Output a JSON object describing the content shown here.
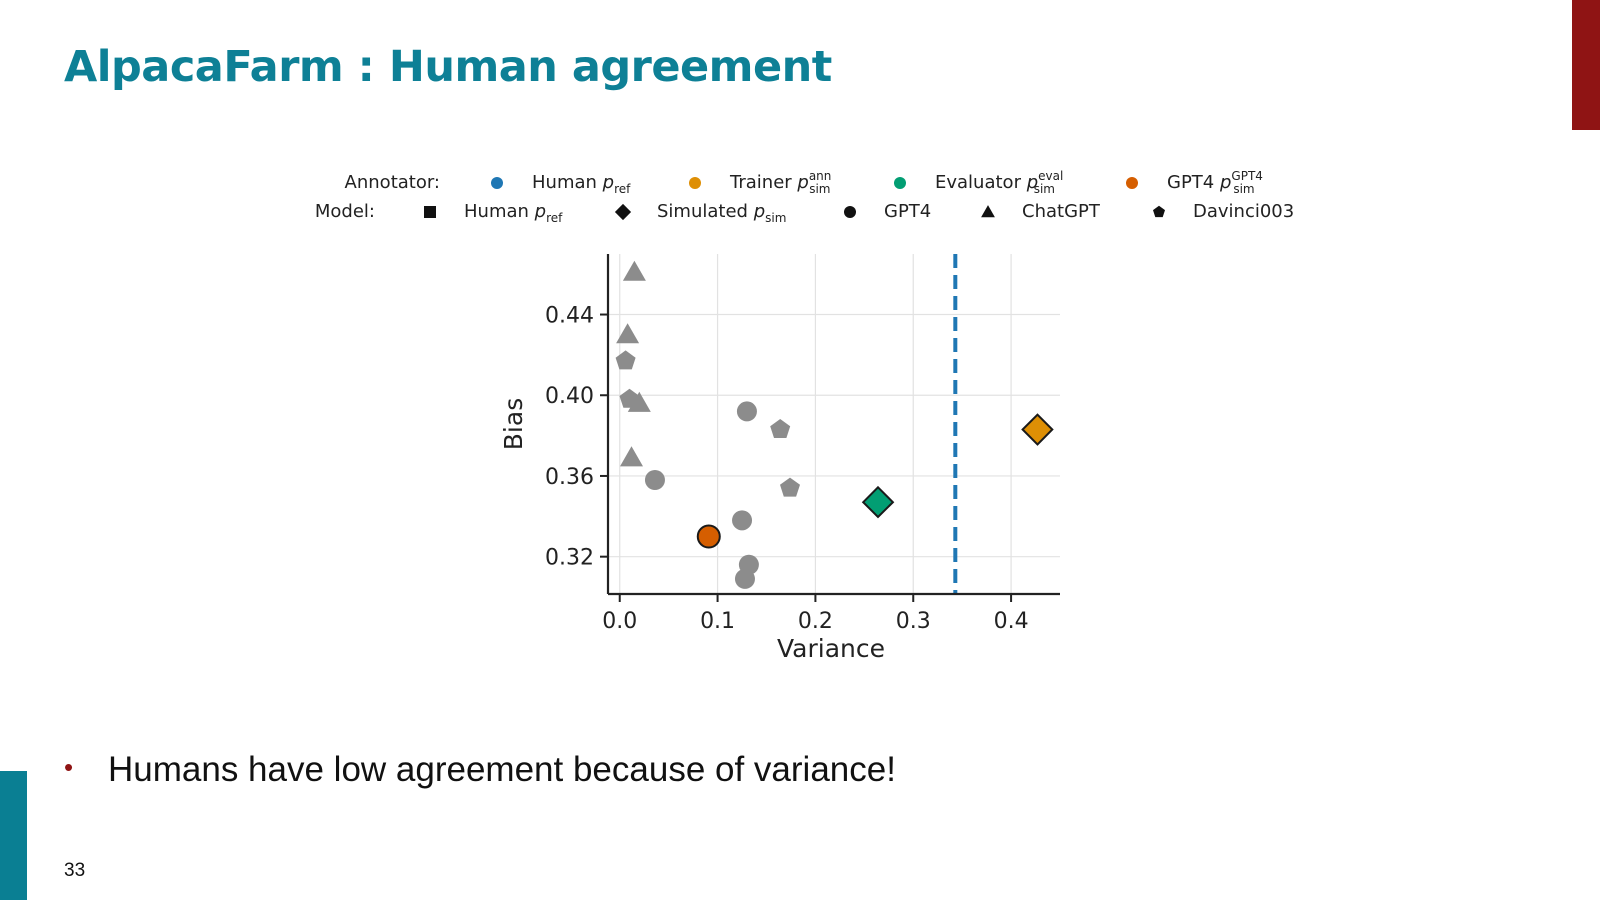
{
  "slide": {
    "title": "AlpacaFarm : Human agreement",
    "bullet": "Humans have low agreement because of variance!",
    "page_number": "33",
    "accent_colors": {
      "title": "#0e8096",
      "bar_top_right": "#8f1414",
      "bar_bottom_left": "#0a7f93",
      "bullet": "#8f1414"
    }
  },
  "chart_data": {
    "type": "scatter",
    "xlabel": "Variance",
    "ylabel": "Bias",
    "xlim": [
      -0.012,
      0.45
    ],
    "ylim": [
      0.3015,
      0.47
    ],
    "xticks": [
      0.0,
      0.1,
      0.2,
      0.3,
      0.4
    ],
    "xtick_labels": [
      "0.0",
      "0.1",
      "0.2",
      "0.3",
      "0.4"
    ],
    "yticks": [
      0.32,
      0.36,
      0.4,
      0.44
    ],
    "ytick_labels": [
      "0.32",
      "0.36",
      "0.40",
      "0.44"
    ],
    "grid": true,
    "legend_placement": "top",
    "legend": {
      "annotator_heading": "Annotator:",
      "model_heading": "Model:",
      "annotators": [
        {
          "key": "human",
          "base": "Human ",
          "sym": "p",
          "sub": "ref",
          "sup": "",
          "color": "#1f77b4"
        },
        {
          "key": "trainer",
          "base": "Trainer ",
          "sym": "p",
          "sub": "sim",
          "sup": "ann",
          "color": "#de8f05"
        },
        {
          "key": "evaluator",
          "base": "Evaluator ",
          "sym": "p",
          "sub": "sim",
          "sup": "eval",
          "color": "#029e73"
        },
        {
          "key": "gpt4",
          "base": "GPT4 ",
          "sym": "p",
          "sub": "sim",
          "sup": "GPT4",
          "color": "#d55e00"
        }
      ],
      "models": [
        {
          "key": "human",
          "marker": "square",
          "base": "Human ",
          "sym": "p",
          "sub": "ref"
        },
        {
          "key": "simulated",
          "marker": "diamond",
          "base": "Simulated ",
          "sym": "p",
          "sub": "sim"
        },
        {
          "key": "gpt4",
          "marker": "circle",
          "base": "GPT4",
          "sym": "",
          "sub": ""
        },
        {
          "key": "chatgpt",
          "marker": "triangle",
          "base": "ChatGPT",
          "sym": "",
          "sub": ""
        },
        {
          "key": "davinci003",
          "marker": "pentagon",
          "base": "Davinci003",
          "sym": "",
          "sub": ""
        }
      ]
    },
    "reference_line": {
      "x": 0.343,
      "color": "#1f77b4",
      "style": "dashed",
      "annotator": "human"
    },
    "points": [
      {
        "x": 0.015,
        "y": 0.461,
        "marker": "triangle",
        "annotator": "other",
        "color": "#8c8c8c"
      },
      {
        "x": 0.008,
        "y": 0.43,
        "marker": "triangle",
        "annotator": "other",
        "color": "#8c8c8c"
      },
      {
        "x": 0.006,
        "y": 0.417,
        "marker": "pentagon",
        "annotator": "other",
        "color": "#8c8c8c"
      },
      {
        "x": 0.01,
        "y": 0.398,
        "marker": "pentagon",
        "annotator": "other",
        "color": "#8c8c8c"
      },
      {
        "x": 0.02,
        "y": 0.396,
        "marker": "triangle",
        "annotator": "other",
        "color": "#8c8c8c"
      },
      {
        "x": 0.012,
        "y": 0.369,
        "marker": "triangle",
        "annotator": "other",
        "color": "#8c8c8c"
      },
      {
        "x": 0.036,
        "y": 0.358,
        "marker": "circle",
        "annotator": "other",
        "color": "#8c8c8c"
      },
      {
        "x": 0.13,
        "y": 0.392,
        "marker": "circle",
        "annotator": "other",
        "color": "#8c8c8c"
      },
      {
        "x": 0.164,
        "y": 0.383,
        "marker": "pentagon",
        "annotator": "other",
        "color": "#8c8c8c"
      },
      {
        "x": 0.174,
        "y": 0.354,
        "marker": "pentagon",
        "annotator": "other",
        "color": "#8c8c8c"
      },
      {
        "x": 0.125,
        "y": 0.338,
        "marker": "circle",
        "annotator": "other",
        "color": "#8c8c8c"
      },
      {
        "x": 0.132,
        "y": 0.316,
        "marker": "circle",
        "annotator": "other",
        "color": "#8c8c8c"
      },
      {
        "x": 0.128,
        "y": 0.309,
        "marker": "circle",
        "annotator": "other",
        "color": "#8c8c8c"
      },
      {
        "x": 0.091,
        "y": 0.33,
        "marker": "circle",
        "annotator": "gpt4",
        "color": "#d55e00"
      },
      {
        "x": 0.264,
        "y": 0.347,
        "marker": "diamond",
        "annotator": "evaluator",
        "color": "#029e73"
      },
      {
        "x": 0.427,
        "y": 0.383,
        "marker": "diamond",
        "annotator": "trainer",
        "color": "#de8f05"
      }
    ]
  }
}
